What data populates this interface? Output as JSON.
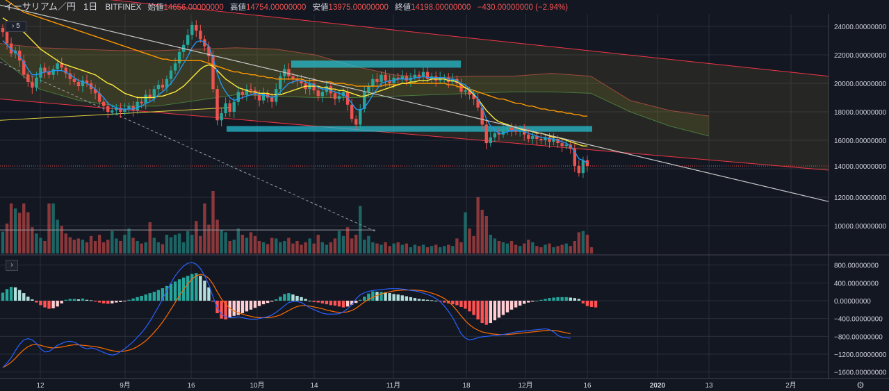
{
  "header": {
    "symbol": "イーサリアム／円",
    "interval": "1日",
    "exchange": "BITFINEX",
    "open_label": "始値",
    "open_value": "14656.00000000",
    "high_label": "高値",
    "high_value": "14754.00000000",
    "low_label": "安値",
    "low_value": "13975.00000000",
    "close_label": "終値",
    "close_value": "14198.00000000",
    "change": "−430.00000000 (−2.94%)"
  },
  "controls": {
    "collapse_badge": "5",
    "expand_glyph": "›",
    "settings_glyph": "⚙"
  },
  "colors": {
    "background": "#131722",
    "up": "#26a69a",
    "down": "#ef5350",
    "grid": "#2a2e39",
    "sma_short": "#2196f3",
    "sma_mid": "#ffeb3b",
    "sma_long": "#ff9800",
    "trendline": "#c8c8c8",
    "channel": "#f23645"
  },
  "chart_data": [
    {
      "type": "candlestick",
      "title": "",
      "ylim": [
        8000,
        25000
      ],
      "y_ticks": [
        "24000.00000000",
        "22000.00000000",
        "20000.00000000",
        "18000.00000000",
        "16000.00000000",
        "14000.00000000",
        "12000.00000000",
        "10000.00000000"
      ],
      "y_tick_values": [
        24000,
        22000,
        20000,
        18000,
        16000,
        14000,
        12000,
        10000
      ],
      "x_ticks": [
        "12",
        "9月",
        "16",
        "10月",
        "14",
        "11月",
        "18",
        "12月",
        "16",
        "2020",
        "13",
        "2月"
      ],
      "last_price": 14198,
      "closes": [
        23600,
        22800,
        22100,
        22300,
        21600,
        20600,
        20100,
        19700,
        20400,
        21100,
        20800,
        20600,
        21000,
        21400,
        21100,
        20700,
        20300,
        20100,
        19800,
        20200,
        20000,
        19600,
        19300,
        18700,
        18400,
        18000,
        18100,
        18300,
        18000,
        18200,
        18400,
        18100,
        18700,
        18600,
        19200,
        19000,
        19600,
        19900,
        19700,
        20300,
        20900,
        21400,
        22200,
        22700,
        23400,
        24100,
        23700,
        23100,
        22600,
        21900,
        19600,
        17400,
        17900,
        18600,
        18000,
        18700,
        19400,
        19200,
        19600,
        19500,
        19200,
        18800,
        19300,
        19000,
        18700,
        19600,
        20500,
        21000,
        20500,
        20300,
        20200,
        20000,
        19600,
        20000,
        19500,
        19100,
        19400,
        19800,
        19300,
        18900,
        19100,
        19400,
        18500,
        17500,
        17100,
        18200,
        19400,
        19800,
        20300,
        20100,
        20600,
        20200,
        20000,
        20400,
        20300,
        20500,
        20200,
        20400,
        20600,
        20500,
        20800,
        20300,
        20500,
        20200,
        20400,
        20400,
        20100,
        20300,
        20000,
        19400,
        19500,
        19200,
        18900,
        18300,
        17100,
        15800,
        16200,
        16500,
        16400,
        16700,
        16900,
        16700,
        16600,
        16800,
        16400,
        16100,
        16300,
        16100,
        16000,
        16200,
        15900,
        16100,
        15800,
        15600,
        15700,
        15400,
        14200,
        13700,
        14600,
        14198
      ],
      "sma_short": [
        23000,
        22700,
        22400,
        22200,
        21900,
        21500,
        21000,
        20600,
        20600,
        20700,
        20800,
        20800,
        20900,
        20900,
        20900,
        20800,
        20600,
        20400,
        20200,
        20100,
        20000,
        19800,
        19600,
        19300,
        19000,
        18600,
        18400,
        18300,
        18200,
        18200,
        18200,
        18200,
        18300,
        18400,
        18600,
        18700,
        18900,
        19200,
        19400,
        19700,
        20000,
        20400,
        20900,
        21400,
        21900,
        22500,
        22900,
        23000,
        22900,
        22600,
        21800,
        20700,
        19900,
        19400,
        19000,
        18800,
        18900,
        19000,
        19100,
        19200,
        19300,
        19200,
        19200,
        19100,
        19000,
        19100,
        19400,
        19700,
        20000,
        20100,
        20200,
        20200,
        20100,
        20000,
        19900,
        19700,
        19600,
        19600,
        19500,
        19400,
        19300,
        19200,
        19000,
        18600,
        18200,
        18100,
        18300,
        18700,
        19200,
        19600,
        20000,
        20100,
        20200,
        20200,
        20300,
        20300,
        20300,
        20300,
        20400,
        20400,
        20500,
        20400,
        20400,
        20400,
        20400,
        20400,
        20300,
        20300,
        20200,
        20000,
        19900,
        19600,
        19300,
        18900,
        18300,
        17500,
        17000,
        16700,
        16500,
        16500,
        16600,
        16700,
        16700,
        16700,
        16600,
        16500,
        16400,
        16300,
        16200,
        16200,
        16100,
        16100,
        16000,
        15900,
        15800,
        15600,
        15200,
        14700,
        14600,
        14400
      ],
      "sma_mid": [
        24600,
        24400,
        24200,
        24000,
        23800,
        23600,
        23300,
        23000,
        22700,
        22400,
        22200,
        22000,
        21800,
        21600,
        21400,
        21300,
        21200,
        21100,
        21000,
        20900,
        20800,
        20700,
        20600,
        20400,
        20200,
        20000,
        19900,
        19700,
        19500,
        19300,
        19200,
        19100,
        19000,
        19000,
        19000,
        19000,
        19000,
        19100,
        19100,
        19200,
        19300,
        19400,
        19600,
        19800,
        20100,
        20400,
        20700,
        21000,
        21200,
        21300,
        21200,
        20900,
        20600,
        20300,
        20100,
        19900,
        19700,
        19600,
        19500,
        19400,
        19400,
        19300,
        19300,
        19300,
        19200,
        19200,
        19200,
        19300,
        19400,
        19500,
        19600,
        19700,
        19800,
        19800,
        19800,
        19800,
        19700,
        19700,
        19600,
        19600,
        19500,
        19500,
        19400,
        19300,
        19200,
        19100,
        19100,
        19200,
        19300,
        19400,
        19500,
        19600,
        19700,
        19800,
        19900,
        20000,
        20000,
        20100,
        20100,
        20200,
        20200,
        20200,
        20300,
        20300,
        20300,
        20300,
        20200,
        20200,
        20100,
        19900,
        19700,
        19500,
        19200,
        18900,
        18500,
        18100,
        17800,
        17500,
        17300,
        17200,
        17100,
        17000,
        16900,
        16800,
        16700,
        16700,
        16600,
        16500,
        16500,
        16400,
        16300,
        16200,
        16200,
        16100,
        16000,
        15900,
        15800,
        15700,
        15600,
        15600
      ],
      "sma_long": [
        26000,
        25800,
        25600,
        25400,
        25200,
        25000,
        24900,
        24800,
        24700,
        24600,
        24500,
        24400,
        24300,
        24200,
        24100,
        24000,
        23900,
        23800,
        23700,
        23600,
        23500,
        23400,
        23300,
        23200,
        23100,
        23000,
        22900,
        22800,
        22700,
        22600,
        22500,
        22400,
        22300,
        22200,
        22100,
        22000,
        21900,
        21800,
        21700,
        21700,
        21600,
        21600,
        21600,
        21600,
        21600,
        21600,
        21600,
        21600,
        21500,
        21400,
        21300,
        21200,
        21100,
        21000,
        20900,
        20800,
        20800,
        20700,
        20700,
        20600,
        20600,
        20500,
        20500,
        20400,
        20400,
        20300,
        20300,
        20300,
        20300,
        20300,
        20300,
        20300,
        20200,
        20200,
        20200,
        20200,
        20100,
        20100,
        20100,
        20000,
        20000,
        20000,
        19900,
        19900,
        19800,
        19800,
        19800,
        19800,
        19800,
        19800,
        19800,
        19900,
        19900,
        19900,
        19900,
        20000,
        20000,
        20000,
        20000,
        20000,
        20000,
        20000,
        20000,
        20000,
        20000,
        20000,
        19900,
        19900,
        19800,
        19700,
        19700,
        19600,
        19500,
        19400,
        19300,
        19200,
        19100,
        19000,
        18900,
        18900,
        18800,
        18700,
        18600,
        18600,
        18500,
        18400,
        18400,
        18300,
        18200,
        18200,
        18100,
        18100,
        18000,
        18000,
        17900,
        17900,
        17800,
        17800,
        17700,
        17700
      ],
      "channel_upper": [
        [
          0,
          26700
        ],
        [
          1192,
          20500
        ]
      ],
      "channel_lower": [
        [
          0,
          18900
        ],
        [
          1192,
          13900
        ]
      ],
      "trendline": [
        [
          0,
          25500
        ],
        [
          1192,
          11700
        ]
      ],
      "support_line": [
        [
          0,
          17400
        ],
        [
          330,
          18300
        ]
      ],
      "dashed_line": [
        [
          0,
          21500
        ],
        [
          540,
          9600
        ]
      ],
      "resistance_zone": [
        21100,
        21600
      ],
      "support_zone": [
        16600,
        17000
      ],
      "ichimoku_cloud_top": [
        22800,
        22500,
        22400,
        22300,
        22300,
        22400,
        22500,
        22400,
        22000,
        21200,
        20600,
        20400,
        20500,
        20500,
        20700,
        20500,
        18800,
        18100,
        17700
      ],
      "ichimoku_cloud_bottom": [
        21800,
        19600,
        18800,
        18400,
        18400,
        18800,
        19200,
        19100,
        19000,
        19000,
        19100,
        19200,
        19300,
        19400,
        19400,
        19300,
        18000,
        17000,
        16300
      ]
    },
    {
      "type": "bar",
      "title": "",
      "series_label": "volume",
      "volume_ratio": [
        0.35,
        0.48,
        0.8,
        0.72,
        0.65,
        0.8,
        0.66,
        0.42,
        0.32,
        0.25,
        0.2,
        0.8,
        0.8,
        0.54,
        0.44,
        0.32,
        0.26,
        0.22,
        0.24,
        0.22,
        0.18,
        0.28,
        0.2,
        0.3,
        0.18,
        0.22,
        0.36,
        0.24,
        0.2,
        0.3,
        0.4,
        0.25,
        0.2,
        0.16,
        0.18,
        0.5,
        0.25,
        0.18,
        0.15,
        0.3,
        0.26,
        0.3,
        0.32,
        0.18,
        0.36,
        0.3,
        0.52,
        0.28,
        0.8,
        0.46,
        1.0,
        0.54,
        0.38,
        0.34,
        0.2,
        0.22,
        0.4,
        0.3,
        0.25,
        0.34,
        0.28,
        0.2,
        0.18,
        0.15,
        0.25,
        0.24,
        0.18,
        0.2,
        0.25,
        0.16,
        0.2,
        0.14,
        0.18,
        0.24,
        0.16,
        0.3,
        0.18,
        0.14,
        0.18,
        0.24,
        0.36,
        0.28,
        0.42,
        0.24,
        0.3,
        0.76,
        0.22,
        0.28,
        0.18,
        0.16,
        0.14,
        0.18,
        0.12,
        0.16,
        0.18,
        0.14,
        0.16,
        0.1,
        0.14,
        0.12,
        0.14,
        0.1,
        0.12,
        0.14,
        0.1,
        0.12,
        0.14,
        0.12,
        0.24,
        0.18,
        0.66,
        0.4,
        0.28,
        0.9,
        0.7,
        0.6,
        0.3,
        0.24,
        0.2,
        0.18,
        0.16,
        0.2,
        0.14,
        0.12,
        0.16,
        0.22,
        0.18,
        0.12,
        0.1,
        0.14,
        0.16,
        0.1,
        0.12,
        0.14,
        0.16,
        0.12,
        0.2,
        0.34,
        0.36,
        0.3,
        0.1
      ],
      "reference_level": 9700
    },
    {
      "type": "bar",
      "title": "",
      "series_label": "MACD",
      "ylim": [
        -1700,
        900
      ],
      "y_ticks": [
        "800.00000000",
        "400.00000000",
        "0.00000000",
        "−400.00000000",
        "−800.00000000",
        "−1200.00000000",
        "−1600.00000000"
      ],
      "y_tick_values": [
        800,
        400,
        0,
        -400,
        -800,
        -1200,
        -1600
      ],
      "histogram": [
        180,
        260,
        310,
        300,
        240,
        170,
        90,
        30,
        -40,
        -100,
        -150,
        -180,
        -170,
        -130,
        -60,
        20,
        40,
        40,
        30,
        50,
        20,
        10,
        -20,
        -40,
        -60,
        -70,
        -60,
        -40,
        -30,
        -10,
        20,
        50,
        80,
        110,
        140,
        170,
        200,
        240,
        280,
        330,
        380,
        430,
        480,
        520,
        560,
        600,
        620,
        560,
        450,
        300,
        -20,
        -280,
        -400,
        -420,
        -380,
        -340,
        -320,
        -280,
        -240,
        -200,
        -160,
        -120,
        -80,
        -50,
        -20,
        30,
        90,
        150,
        170,
        140,
        110,
        80,
        40,
        0,
        -30,
        -40,
        -60,
        -80,
        -100,
        -110,
        -130,
        -150,
        -130,
        -90,
        -50,
        20,
        90,
        160,
        210,
        200,
        200,
        190,
        170,
        150,
        140,
        120,
        100,
        80,
        60,
        40,
        30,
        20,
        10,
        0,
        -20,
        -40,
        -60,
        -80,
        -100,
        -140,
        -180,
        -240,
        -320,
        -420,
        -500,
        -540,
        -500,
        -440,
        -380,
        -320,
        -260,
        -200,
        -150,
        -110,
        -70,
        -40,
        -20,
        0,
        20,
        40,
        60,
        70,
        80,
        80,
        80,
        70,
        60,
        40,
        -60,
        -120,
        -140,
        -150
      ],
      "macd_line": [
        -1500,
        -1400,
        -1280,
        -1120,
        -980,
        -880,
        -850,
        -880,
        -960,
        -1080,
        -1150,
        -1140,
        -1070,
        -1000,
        -960,
        -920,
        -910,
        -930,
        -980,
        -1050,
        -1080,
        -1060,
        -1080,
        -1120,
        -1160,
        -1200,
        -1220,
        -1200,
        -1140,
        -1080,
        -1000,
        -920,
        -820,
        -720,
        -600,
        -460,
        -300,
        -140,
        40,
        220,
        400,
        560,
        680,
        780,
        840,
        860,
        820,
        720,
        560,
        360,
        80,
        -160,
        -300,
        -360,
        -380,
        -380,
        -360,
        -380,
        -400,
        -420,
        -420,
        -400,
        -380,
        -360,
        -320,
        -260,
        -190,
        -110,
        -40,
        -20,
        -20,
        -40,
        -100,
        -160,
        -200,
        -240,
        -280,
        -300,
        -300,
        -300,
        -290,
        -250,
        -180,
        -90,
        40,
        130,
        180,
        210,
        230,
        240,
        250,
        260,
        270,
        270,
        270,
        260,
        250,
        230,
        220,
        200,
        170,
        140,
        100,
        50,
        -20,
        -120,
        -240,
        -380,
        -560,
        -740,
        -840,
        -880,
        -860,
        -830,
        -810,
        -800,
        -790,
        -780,
        -770,
        -760,
        -740,
        -720,
        -700,
        -690,
        -680,
        -670,
        -660,
        -650,
        -640,
        -630,
        -650,
        -700,
        -780,
        -820,
        -830,
        -840
      ],
      "signal_line": [
        -1500,
        -1450,
        -1380,
        -1290,
        -1190,
        -1100,
        -1030,
        -990,
        -980,
        -1000,
        -1030,
        -1050,
        -1060,
        -1050,
        -1040,
        -1020,
        -1000,
        -990,
        -990,
        -1000,
        -1010,
        -1020,
        -1030,
        -1050,
        -1070,
        -1100,
        -1120,
        -1140,
        -1140,
        -1130,
        -1110,
        -1080,
        -1030,
        -970,
        -900,
        -810,
        -710,
        -600,
        -480,
        -340,
        -190,
        -40,
        110,
        250,
        380,
        490,
        560,
        590,
        570,
        500,
        370,
        200,
        40,
        -80,
        -170,
        -230,
        -270,
        -300,
        -330,
        -350,
        -370,
        -380,
        -380,
        -380,
        -370,
        -350,
        -320,
        -270,
        -220,
        -170,
        -130,
        -110,
        -110,
        -120,
        -140,
        -160,
        -180,
        -210,
        -230,
        -250,
        -260,
        -260,
        -250,
        -220,
        -170,
        -100,
        -30,
        30,
        80,
        120,
        150,
        180,
        200,
        220,
        230,
        240,
        240,
        240,
        240,
        230,
        220,
        200,
        170,
        140,
        100,
        50,
        -20,
        -110,
        -220,
        -340,
        -450,
        -540,
        -610,
        -660,
        -700,
        -720,
        -740,
        -750,
        -760,
        -760,
        -760,
        -750,
        -740,
        -730,
        -720,
        -710,
        -700,
        -690,
        -680,
        -670,
        -665,
        -665,
        -680,
        -700,
        -720,
        -740
      ]
    }
  ]
}
